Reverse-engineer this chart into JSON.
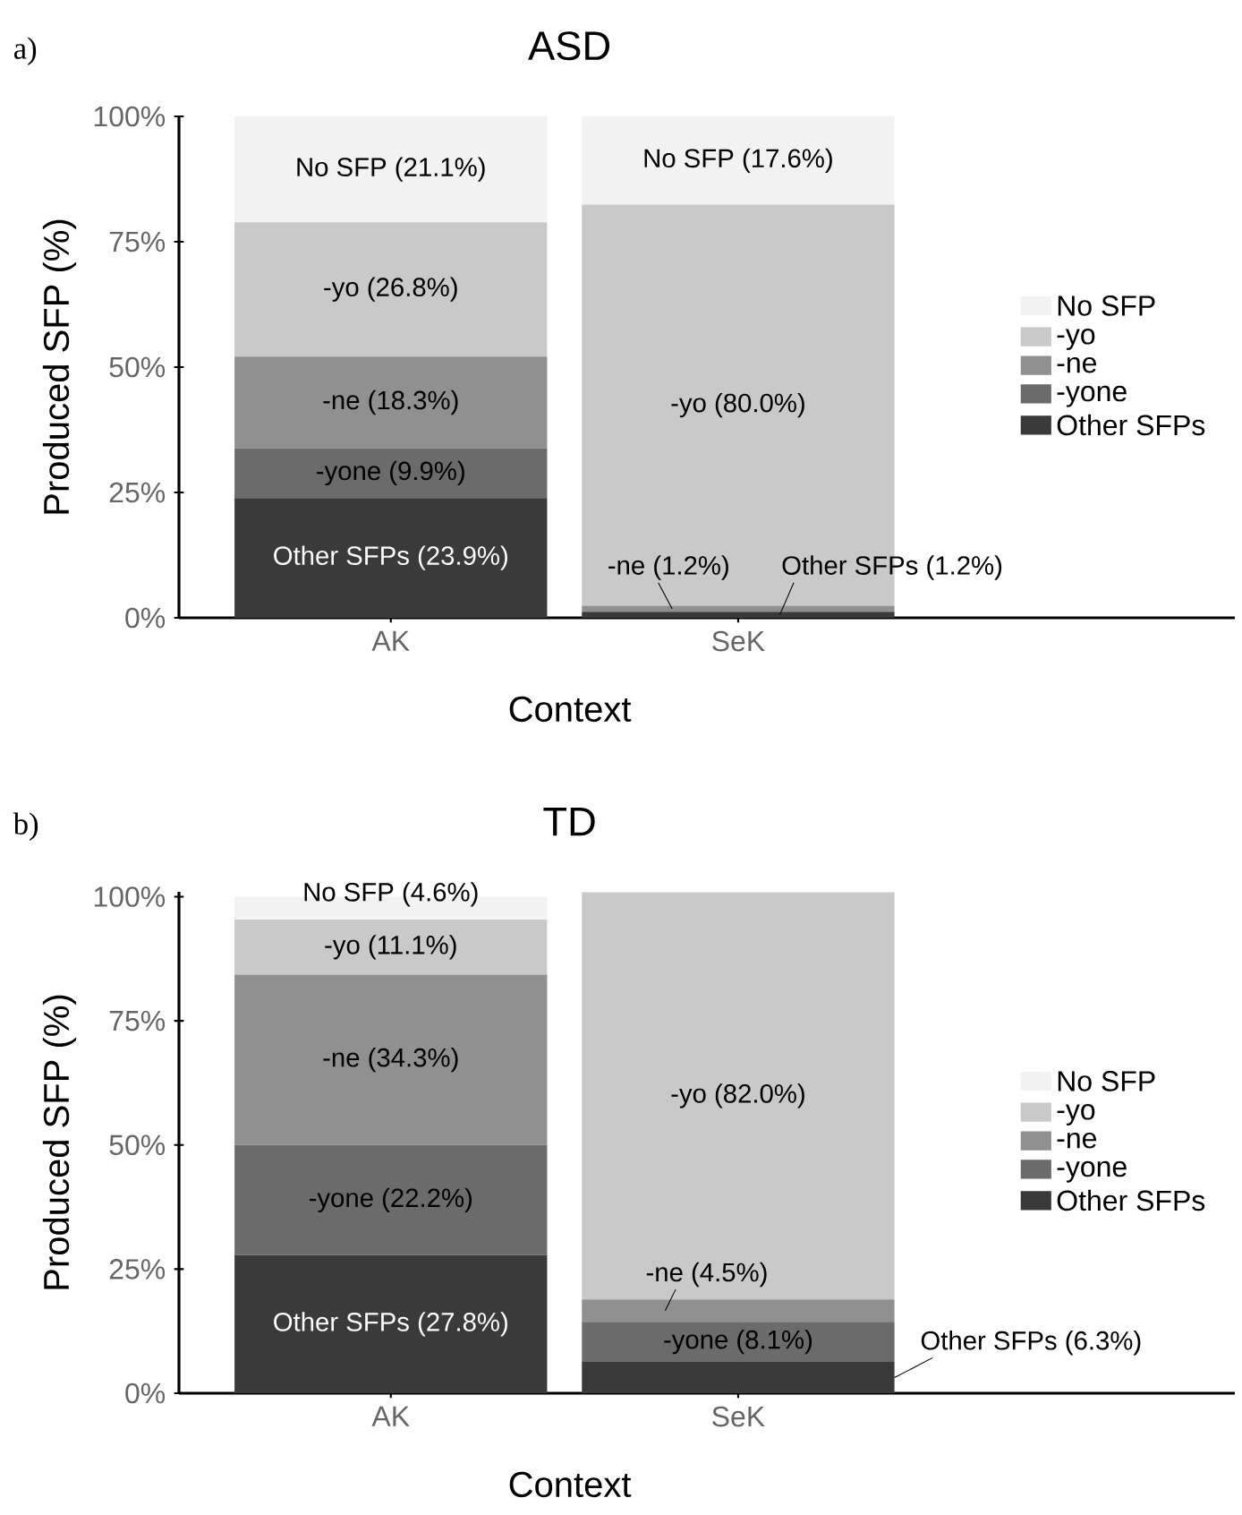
{
  "chart_data": [
    {
      "type": "bar",
      "stacked": true,
      "title": "ASD",
      "xlabel": "Context",
      "ylabel": "Produced SFP (%)",
      "categories": [
        "AK",
        "SeK"
      ],
      "ylim": [
        0,
        100
      ],
      "yticks": [
        {
          "value": 0,
          "label": "0%"
        },
        {
          "value": 25,
          "label": "25%"
        },
        {
          "value": 50,
          "label": "50%"
        },
        {
          "value": 75,
          "label": "75%"
        },
        {
          "value": 100,
          "label": "100%"
        }
      ],
      "legend": "right",
      "annotations": [
        "a)"
      ],
      "series": [
        {
          "name": "Other SFPs",
          "color": "#3a3a3a",
          "values": [
            23.9,
            1.2
          ],
          "value_labels": [
            "Other SFPs (23.9%)",
            "Other SFPs (1.2%)"
          ]
        },
        {
          "name": "-yone",
          "color": "#6b6b6b",
          "values": [
            9.9,
            0
          ],
          "value_labels": [
            "-yone (9.9%)",
            null
          ]
        },
        {
          "name": "-ne",
          "color": "#909090",
          "values": [
            18.3,
            1.2
          ],
          "value_labels": [
            "-ne (18.3%)",
            "-ne (1.2%)"
          ]
        },
        {
          "name": "-yo",
          "color": "#c9c9c9",
          "values": [
            26.8,
            80.0
          ],
          "value_labels": [
            "-yo (26.8%)",
            "-yo (80.0%)"
          ]
        },
        {
          "name": "No SFP",
          "color": "#f2f2f2",
          "values": [
            21.1,
            17.6
          ],
          "value_labels": [
            "No SFP (21.1%)",
            "No SFP (17.6%)"
          ]
        }
      ]
    },
    {
      "type": "bar",
      "stacked": true,
      "title": "TD",
      "xlabel": "Context",
      "ylabel": "Produced SFP (%)",
      "categories": [
        "AK",
        "SeK"
      ],
      "ylim": [
        0,
        101
      ],
      "yticks": [
        {
          "value": 0,
          "label": "0%"
        },
        {
          "value": 25,
          "label": "25%"
        },
        {
          "value": 50,
          "label": "50%"
        },
        {
          "value": 75,
          "label": "75%"
        },
        {
          "value": 100,
          "label": "100%"
        }
      ],
      "legend": "right",
      "annotations": [
        "b)"
      ],
      "series": [
        {
          "name": "Other SFPs",
          "color": "#3a3a3a",
          "values": [
            27.8,
            6.3
          ],
          "value_labels": [
            "Other SFPs (27.8%)",
            "Other SFPs (6.3%)"
          ]
        },
        {
          "name": "-yone",
          "color": "#6b6b6b",
          "values": [
            22.2,
            8.1
          ],
          "value_labels": [
            "-yone (22.2%)",
            "-yone (8.1%)"
          ]
        },
        {
          "name": "-ne",
          "color": "#909090",
          "values": [
            34.3,
            4.5
          ],
          "value_labels": [
            "-ne (34.3%)",
            "-ne (4.5%)"
          ]
        },
        {
          "name": "-yo",
          "color": "#c9c9c9",
          "values": [
            11.1,
            82.0
          ],
          "value_labels": [
            "-yo (11.1%)",
            "-yo (82.0%)"
          ]
        },
        {
          "name": "No SFP",
          "color": "#f2f2f2",
          "values": [
            4.6,
            0.0
          ],
          "value_labels": [
            "No SFP (4.6%)",
            null
          ]
        }
      ]
    }
  ]
}
